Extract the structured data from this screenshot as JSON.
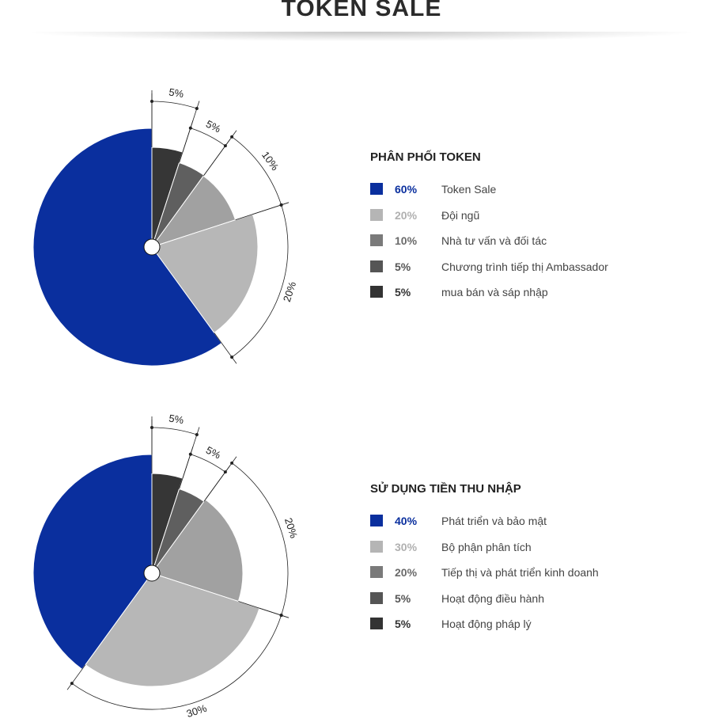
{
  "page": {
    "title": "TOKEN SALE"
  },
  "colors": {
    "blue": "#0a2f9e",
    "light_gray": "#b7b7b7",
    "mid_gray": "#a1a1a1",
    "dark_gray": "#5f5f5f",
    "darkest": "#363636",
    "swatch_light": "#b5b5b5",
    "swatch_mid": "#7a7a7a",
    "swatch_dark": "#555555",
    "swatch_darkest": "#333333"
  },
  "chart_data": [
    {
      "type": "pie",
      "title": "PHÂN PHỐI TOKEN",
      "slices": [
        {
          "value": 5,
          "pct_label": "5%",
          "label": "mua bán và sáp nhập",
          "pie_color": "#363636",
          "swatch_color": "#333333",
          "pct_color": "#333333",
          "annotation": "5%"
        },
        {
          "value": 5,
          "pct_label": "5%",
          "label": "Chương trình tiếp thị Ambassador",
          "pie_color": "#5f5f5f",
          "swatch_color": "#555555",
          "pct_color": "#555555",
          "annotation": "5%"
        },
        {
          "value": 10,
          "pct_label": "10%",
          "label": "Nhà tư vấn và đối tác",
          "pie_color": "#a1a1a1",
          "swatch_color": "#7a7a7a",
          "pct_color": "#6a6a6a",
          "annotation": "10%"
        },
        {
          "value": 20,
          "pct_label": "20%",
          "label": "Đội ngũ",
          "pie_color": "#b7b7b7",
          "swatch_color": "#b5b5b5",
          "pct_color": "#b0b0b0",
          "annotation": "20%"
        },
        {
          "value": 60,
          "pct_label": "60%",
          "label": "Token Sale",
          "pie_color": "#0a2f9e",
          "swatch_color": "#0a2f9e",
          "pct_color": "#0a2f9e",
          "annotation": ""
        }
      ],
      "legend": [
        {
          "pct": "60%",
          "label": "Token Sale",
          "swatch": "#0a2f9e",
          "pct_color": "#0a2f9e"
        },
        {
          "pct": "20%",
          "label": "Đội ngũ",
          "swatch": "#b5b5b5",
          "pct_color": "#b0b0b0"
        },
        {
          "pct": "10%",
          "label": "Nhà tư vấn và đối tác",
          "swatch": "#7a7a7a",
          "pct_color": "#6a6a6a"
        },
        {
          "pct": "5%",
          "label": "Chương trình tiếp thị Ambassador",
          "swatch": "#555555",
          "pct_color": "#555555"
        },
        {
          "pct": "5%",
          "label": "mua bán và sáp nhập",
          "swatch": "#333333",
          "pct_color": "#333333"
        }
      ]
    },
    {
      "type": "pie",
      "title": "SỬ DỤNG TIỀN THU NHẬP",
      "slices": [
        {
          "value": 5,
          "pct_label": "5%",
          "label": "Hoạt động pháp lý",
          "pie_color": "#363636",
          "swatch_color": "#333333",
          "pct_color": "#333333",
          "annotation": "5%"
        },
        {
          "value": 5,
          "pct_label": "5%",
          "label": "Hoạt động điều hành",
          "pie_color": "#5f5f5f",
          "swatch_color": "#555555",
          "pct_color": "#555555",
          "annotation": "5%"
        },
        {
          "value": 20,
          "pct_label": "20%",
          "label": "Tiếp thị và phát triển kinh doanh",
          "pie_color": "#a1a1a1",
          "swatch_color": "#7a7a7a",
          "pct_color": "#6a6a6a",
          "annotation": "20%"
        },
        {
          "value": 30,
          "pct_label": "30%",
          "label": "Bộ phận phân tích",
          "pie_color": "#b7b7b7",
          "swatch_color": "#b5b5b5",
          "pct_color": "#b0b0b0",
          "annotation": "30%"
        },
        {
          "value": 40,
          "pct_label": "40%",
          "label": "Phát triển và bảo mật",
          "pie_color": "#0a2f9e",
          "swatch_color": "#0a2f9e",
          "pct_color": "#0a2f9e",
          "annotation": ""
        }
      ],
      "legend": [
        {
          "pct": "40%",
          "label": "Phát triển và bảo mật",
          "swatch": "#0a2f9e",
          "pct_color": "#0a2f9e"
        },
        {
          "pct": "30%",
          "label": "Bộ phận phân tích",
          "swatch": "#b5b5b5",
          "pct_color": "#b0b0b0"
        },
        {
          "pct": "20%",
          "label": "Tiếp thị và phát triển kinh doanh",
          "swatch": "#7a7a7a",
          "pct_color": "#6a6a6a"
        },
        {
          "pct": "5%",
          "label": "Hoạt động điều hành",
          "swatch": "#555555",
          "pct_color": "#555555"
        },
        {
          "pct": "5%",
          "label": "Hoạt động pháp lý",
          "swatch": "#333333",
          "pct_color": "#333333"
        }
      ]
    }
  ]
}
